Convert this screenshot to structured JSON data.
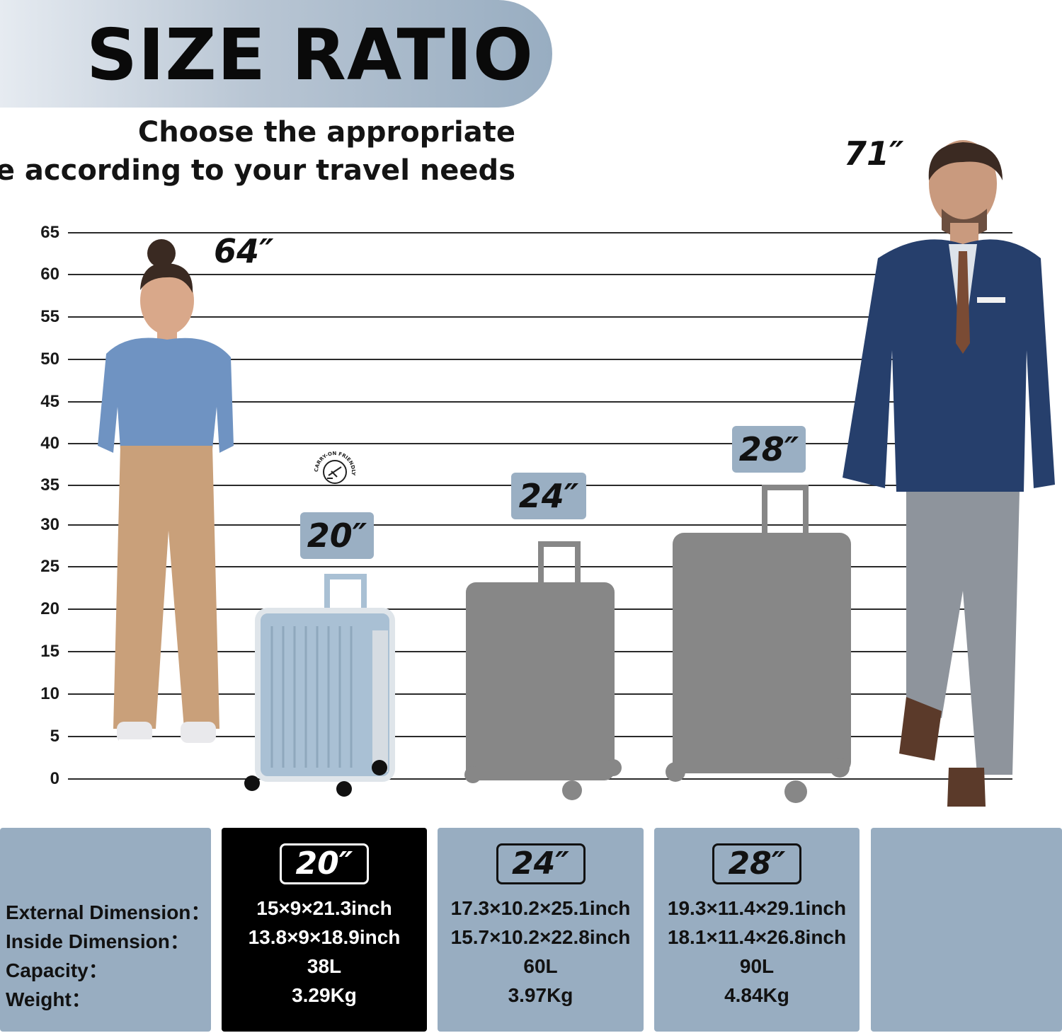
{
  "header": {
    "title": "SIZE RATIO",
    "subtitle_line1": "Choose the appropriate",
    "subtitle_line2": "size according to your travel needs"
  },
  "ruler": {
    "ticks": [
      "65",
      "60",
      "55",
      "50",
      "45",
      "40",
      "35",
      "30",
      "25",
      "20",
      "15",
      "10",
      "5",
      "0"
    ]
  },
  "people": {
    "woman_height": "64″",
    "man_height": "71″"
  },
  "luggage": {
    "carry_on_badge": "CARRY-ON FRIENDLY",
    "tags": [
      "20″",
      "24″",
      "28″"
    ]
  },
  "specs": {
    "labels": {
      "external": "External Dimension：",
      "inside": "Inside Dimension：",
      "capacity": "Capacity：",
      "weight": "Weight："
    },
    "items": [
      {
        "size": "20″",
        "external": "15×9×21.3inch",
        "inside": "13.8×9×18.9inch",
        "capacity": "38L",
        "weight": "3.29Kg"
      },
      {
        "size": "24″",
        "external": "17.3×10.2×25.1inch",
        "inside": "15.7×10.2×22.8inch",
        "capacity": "60L",
        "weight": "3.97Kg"
      },
      {
        "size": "28″",
        "external": "19.3×11.4×29.1inch",
        "inside": "18.1×11.4×26.8inch",
        "capacity": "90L",
        "weight": "4.84Kg"
      }
    ]
  },
  "colors": {
    "accent_blue_gray": "#98adc1",
    "suitcase_blue": "#a9c0d4",
    "suitcase_gray": "#878787",
    "active_card": "#000000"
  }
}
